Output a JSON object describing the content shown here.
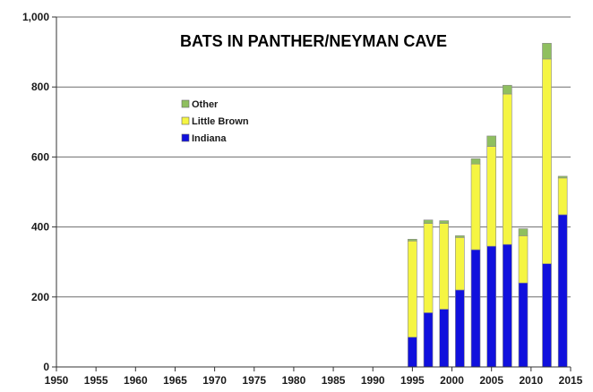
{
  "chart_data": {
    "type": "bar",
    "stacked": true,
    "title": "BATS IN PANTHER/NEYMAN CAVE",
    "xlabel": "",
    "ylabel": "",
    "x_ticks": [
      "1950",
      "1955",
      "1960",
      "1965",
      "1970",
      "1975",
      "1980",
      "1985",
      "1990",
      "1995",
      "2000",
      "2005",
      "2010",
      "2015"
    ],
    "y_ticks": [
      "0",
      "200",
      "400",
      "600",
      "800",
      "1,000"
    ],
    "xlim": [
      1950,
      2015
    ],
    "ylim": [
      0,
      1000
    ],
    "grid": "horizontal",
    "legend_position": "upper-left",
    "categories": [
      1995,
      1997,
      1999,
      2001,
      2003,
      2005,
      2007,
      2009,
      2012,
      2014
    ],
    "series": [
      {
        "name": "Indiana",
        "color": "#1010dd",
        "values": [
          85,
          155,
          165,
          220,
          335,
          345,
          350,
          240,
          295,
          435
        ]
      },
      {
        "name": "Little Brown",
        "color": "#f5f542",
        "values": [
          275,
          255,
          245,
          150,
          245,
          285,
          430,
          135,
          585,
          105
        ]
      },
      {
        "name": "Other",
        "color": "#8fbf5f",
        "values": [
          5,
          10,
          8,
          5,
          15,
          30,
          25,
          20,
          45,
          5
        ]
      }
    ],
    "legend_order": [
      "Other",
      "Little Brown",
      "Indiana"
    ]
  }
}
